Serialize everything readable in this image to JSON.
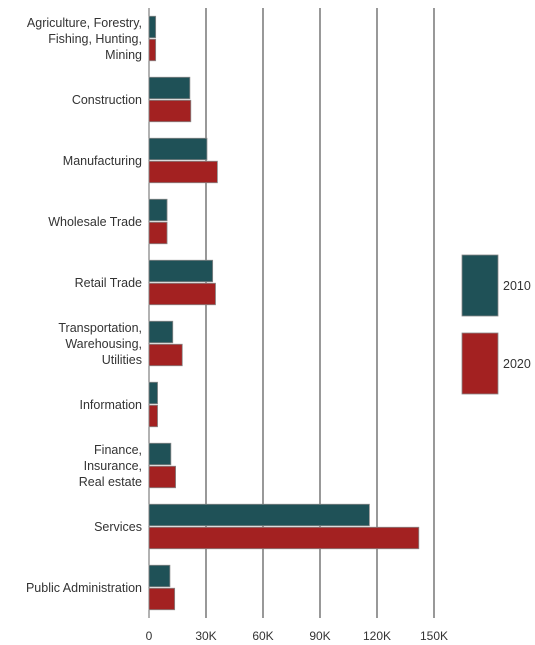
{
  "chart_data": {
    "type": "bar",
    "orientation": "horizontal",
    "title": "",
    "xlabel": "",
    "ylabel": "",
    "categories": [
      [
        "Agriculture, Forestry,",
        "Fishing, Hunting,",
        "Mining"
      ],
      [
        "Construction"
      ],
      [
        "Manufacturing"
      ],
      [
        "Wholesale Trade"
      ],
      [
        "Retail Trade"
      ],
      [
        "Transportation,",
        "Warehousing,",
        "Utilities"
      ],
      [
        "Information"
      ],
      [
        "Finance,",
        "Insurance,",
        "Real estate"
      ],
      [
        "Services"
      ],
      [
        "Public Administration"
      ]
    ],
    "series": [
      {
        "name": "2010",
        "color": "#1f5157",
        "values": [
          3500,
          21500,
          30500,
          9500,
          33500,
          12500,
          4500,
          11500,
          116000,
          11000
        ]
      },
      {
        "name": "2020",
        "color": "#a32121",
        "values": [
          3500,
          22000,
          36000,
          9500,
          35000,
          17500,
          4500,
          14000,
          142000,
          13500
        ]
      }
    ],
    "xlim": [
      0,
      150000
    ],
    "xticks": [
      0,
      30000,
      60000,
      90000,
      120000,
      150000
    ],
    "xtick_labels": [
      "0",
      "30K",
      "60K",
      "90K",
      "120K",
      "150K"
    ],
    "grid": "vertical",
    "legend_position": "right"
  }
}
